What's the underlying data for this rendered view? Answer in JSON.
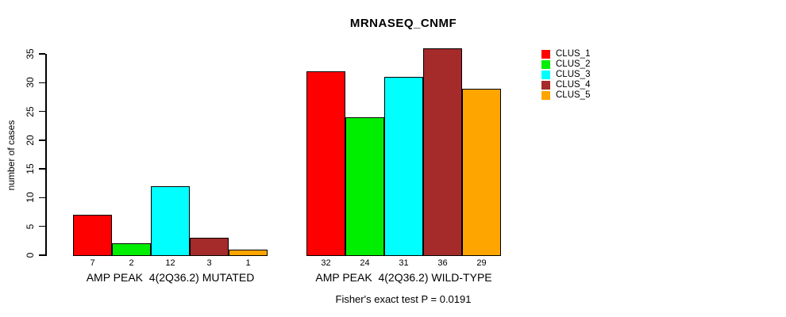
{
  "chart_data": {
    "type": "bar",
    "title": "MRNASEQ_CNMF",
    "xlabel": "",
    "ylabel": "number of cases",
    "ylim": [
      0,
      36
    ],
    "yticks": [
      0,
      5,
      10,
      15,
      20,
      25,
      30,
      35
    ],
    "grid": false,
    "legend_position": "top-right",
    "categories": [
      "AMP PEAK  4(2Q36.2) MUTATED",
      "AMP PEAK  4(2Q36.2) WILD-TYPE"
    ],
    "series": [
      {
        "name": "CLUS_1",
        "color": "#ff0000",
        "values": [
          7,
          32
        ]
      },
      {
        "name": "CLUS_2",
        "color": "#00ee00",
        "values": [
          2,
          24
        ]
      },
      {
        "name": "CLUS_3",
        "color": "#00ffff",
        "values": [
          12,
          31
        ]
      },
      {
        "name": "CLUS_4",
        "color": "#a52a2a",
        "values": [
          3,
          36
        ]
      },
      {
        "name": "CLUS_5",
        "color": "#ffa500",
        "values": [
          1,
          29
        ]
      }
    ],
    "bar_value_labels": [
      [
        7,
        2,
        12,
        3,
        1
      ],
      [
        32,
        24,
        31,
        36,
        29
      ]
    ],
    "annotation": "Fisher's exact test P = 0.0191"
  }
}
